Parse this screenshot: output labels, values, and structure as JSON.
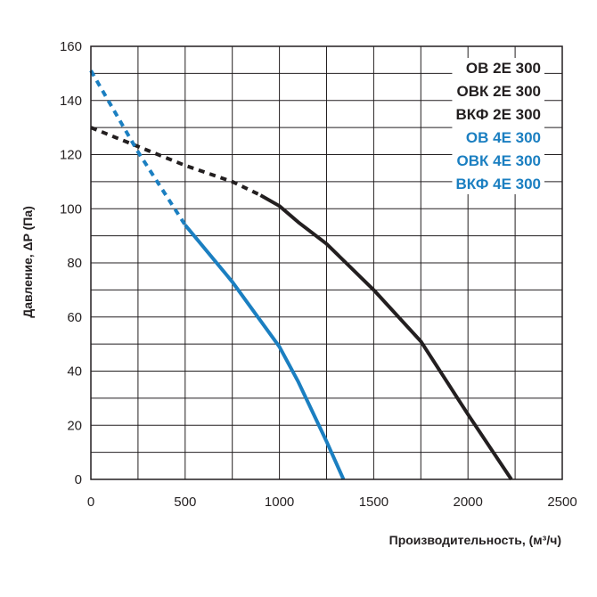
{
  "chart_data": {
    "type": "line",
    "xlabel": "Производительность, (м³/ч)",
    "ylabel": "Давление, ΔP (Па)",
    "xlim": [
      0,
      2500
    ],
    "ylim": [
      0,
      160
    ],
    "x_ticks": [
      0,
      500,
      1000,
      1500,
      2000,
      2500
    ],
    "y_ticks": [
      0,
      20,
      40,
      60,
      80,
      100,
      120,
      140,
      160
    ],
    "x_gridlines": [
      0,
      250,
      500,
      750,
      1000,
      1250,
      1500,
      1750,
      2000,
      2250,
      2500
    ],
    "y_gridlines": [
      0,
      10,
      20,
      30,
      40,
      50,
      60,
      70,
      80,
      90,
      100,
      110,
      120,
      130,
      140,
      150,
      160
    ],
    "grid": true,
    "legend_position": "top-right",
    "legend": [
      {
        "label": "ОВ 2Е 300",
        "color": "#231f20"
      },
      {
        "label": "ОВК 2Е 300",
        "color": "#231f20"
      },
      {
        "label": "ВКФ 2Е 300",
        "color": "#231f20"
      },
      {
        "label": "ОВ 4Е 300",
        "color": "#1b7fc1"
      },
      {
        "label": "ОВК 4Е 300",
        "color": "#1b7fc1"
      },
      {
        "label": "ВКФ 4Е 300",
        "color": "#1b7fc1"
      }
    ],
    "series": [
      {
        "name": "2Е 300",
        "color": "#231f20",
        "dashed_segment": [
          [
            0,
            130
          ],
          [
            250,
            123
          ],
          [
            500,
            116
          ],
          [
            750,
            110
          ],
          [
            900,
            105
          ]
        ],
        "solid_segment": [
          [
            900,
            105
          ],
          [
            1000,
            101
          ],
          [
            1100,
            95
          ],
          [
            1250,
            87
          ],
          [
            1500,
            70
          ],
          [
            1750,
            51
          ],
          [
            2000,
            24
          ],
          [
            2230,
            0
          ]
        ]
      },
      {
        "name": "4Е 300",
        "color": "#1b7fc1",
        "dashed_segment": [
          [
            0,
            151
          ],
          [
            250,
            121
          ],
          [
            500,
            94
          ]
        ],
        "solid_segment": [
          [
            500,
            94
          ],
          [
            750,
            73
          ],
          [
            1000,
            49
          ],
          [
            1100,
            36
          ],
          [
            1250,
            14
          ],
          [
            1340,
            0
          ]
        ]
      }
    ]
  }
}
